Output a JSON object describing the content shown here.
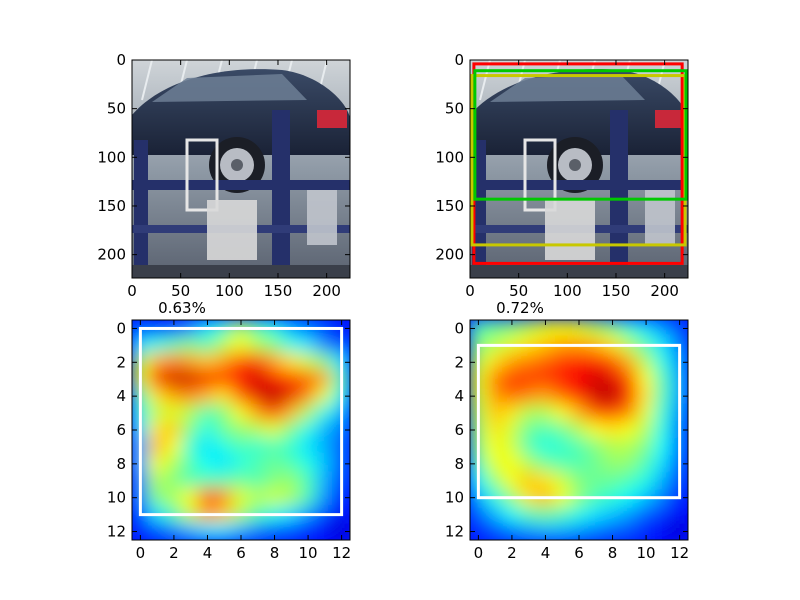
{
  "figure": {
    "panels": [
      {
        "kind": "photo",
        "scene": "car on lift",
        "xticks": [
          "0",
          "50",
          "100",
          "150",
          "200"
        ],
        "yticks": [
          "0",
          "50",
          "100",
          "150",
          "200"
        ],
        "boxes": []
      },
      {
        "kind": "photo",
        "scene": "car on lift",
        "xticks": [
          "0",
          "50",
          "100",
          "150",
          "200"
        ],
        "yticks": [
          "0",
          "50",
          "100",
          "150",
          "200"
        ],
        "boxes": [
          {
            "color": "#ff0000",
            "x0": 4,
            "y0": 4,
            "x1": 218,
            "y1": 209
          },
          {
            "color": "#c8c800",
            "x0": 2,
            "y0": 16,
            "x1": 221,
            "y1": 190
          },
          {
            "color": "#00c800",
            "x0": 5,
            "y0": 11,
            "x1": 222,
            "y1": 143
          }
        ]
      },
      {
        "kind": "heatmap",
        "title": "0.63%",
        "xticks": [
          "0",
          "2",
          "4",
          "6",
          "8",
          "10",
          "12"
        ],
        "yticks": [
          "0",
          "2",
          "4",
          "6",
          "8",
          "10",
          "12"
        ],
        "box": {
          "color": "#ffffff",
          "x0": 0,
          "y0": 0,
          "x1": 12,
          "y1": 11
        }
      },
      {
        "kind": "heatmap",
        "title": "0.72%",
        "xticks": [
          "0",
          "2",
          "4",
          "6",
          "8",
          "10",
          "12"
        ],
        "yticks": [
          "0",
          "2",
          "4",
          "6",
          "8",
          "10",
          "12"
        ],
        "box": {
          "color": "#ffffff",
          "x0": 0,
          "y0": 1,
          "x1": 12,
          "y1": 10
        }
      }
    ]
  },
  "chart_data": [
    {
      "type": "image",
      "xlim": [
        0,
        224
      ],
      "ylim": [
        224,
        0
      ],
      "xticks": [
        0,
        50,
        100,
        150,
        200
      ],
      "yticks": [
        0,
        50,
        100,
        150,
        200
      ]
    },
    {
      "type": "image",
      "xlim": [
        0,
        224
      ],
      "ylim": [
        224,
        0
      ],
      "xticks": [
        0,
        50,
        100,
        150,
        200
      ],
      "yticks": [
        0,
        50,
        100,
        150,
        200
      ],
      "boxes": [
        {
          "color": "red",
          "x": [
            4,
            218
          ],
          "y": [
            4,
            209
          ]
        },
        {
          "color": "yellow",
          "x": [
            2,
            221
          ],
          "y": [
            16,
            190
          ]
        },
        {
          "color": "green",
          "x": [
            5,
            222
          ],
          "y": [
            11,
            143
          ]
        }
      ]
    },
    {
      "type": "heatmap",
      "title": "0.63%",
      "colormap": "jet",
      "xlim": [
        -0.5,
        12.5
      ],
      "ylim": [
        12.5,
        -0.5
      ],
      "xticks": [
        0,
        2,
        4,
        6,
        8,
        10,
        12
      ],
      "yticks": [
        0,
        2,
        4,
        6,
        8,
        10,
        12
      ],
      "values": [
        [
          0.2,
          0.15,
          0.18,
          0.25,
          0.35,
          0.42,
          0.55,
          0.45,
          0.4,
          0.3,
          0.25,
          0.2,
          0.12
        ],
        [
          0.35,
          0.4,
          0.45,
          0.5,
          0.45,
          0.55,
          0.62,
          0.55,
          0.5,
          0.4,
          0.35,
          0.25,
          0.2
        ],
        [
          0.55,
          0.7,
          0.75,
          0.72,
          0.68,
          0.72,
          0.8,
          0.82,
          0.72,
          0.65,
          0.58,
          0.5,
          0.35
        ],
        [
          0.6,
          0.85,
          0.92,
          0.92,
          0.88,
          0.82,
          0.86,
          0.92,
          0.85,
          0.8,
          0.78,
          0.72,
          0.45
        ],
        [
          0.45,
          0.65,
          0.72,
          0.75,
          0.7,
          0.65,
          0.78,
          0.9,
          0.95,
          0.9,
          0.75,
          0.6,
          0.4
        ],
        [
          0.4,
          0.55,
          0.6,
          0.55,
          0.45,
          0.5,
          0.62,
          0.72,
          0.82,
          0.7,
          0.55,
          0.4,
          0.3
        ],
        [
          0.35,
          0.65,
          0.68,
          0.5,
          0.4,
          0.48,
          0.52,
          0.55,
          0.6,
          0.5,
          0.4,
          0.3,
          0.25
        ],
        [
          0.3,
          0.7,
          0.62,
          0.42,
          0.35,
          0.4,
          0.45,
          0.42,
          0.45,
          0.42,
          0.35,
          0.3,
          0.22
        ],
        [
          0.3,
          0.62,
          0.55,
          0.45,
          0.38,
          0.35,
          0.4,
          0.45,
          0.48,
          0.45,
          0.4,
          0.32,
          0.22
        ],
        [
          0.25,
          0.55,
          0.5,
          0.45,
          0.45,
          0.45,
          0.48,
          0.45,
          0.5,
          0.52,
          0.45,
          0.3,
          0.2
        ],
        [
          0.25,
          0.5,
          0.55,
          0.62,
          0.8,
          0.75,
          0.6,
          0.55,
          0.58,
          0.55,
          0.45,
          0.28,
          0.15
        ],
        [
          0.2,
          0.35,
          0.45,
          0.58,
          0.72,
          0.68,
          0.55,
          0.45,
          0.4,
          0.35,
          0.28,
          0.2,
          0.12
        ],
        [
          0.15,
          0.2,
          0.25,
          0.3,
          0.35,
          0.35,
          0.3,
          0.25,
          0.22,
          0.2,
          0.15,
          0.12,
          0.08
        ]
      ]
    },
    {
      "type": "heatmap",
      "title": "0.72%",
      "colormap": "jet",
      "xlim": [
        -0.5,
        12.5
      ],
      "ylim": [
        12.5,
        -0.5
      ],
      "xticks": [
        0,
        2,
        4,
        6,
        8,
        10,
        12
      ],
      "yticks": [
        0,
        2,
        4,
        6,
        8,
        10,
        12
      ],
      "values": [
        [
          0.45,
          0.48,
          0.5,
          0.55,
          0.6,
          0.62,
          0.6,
          0.55,
          0.5,
          0.42,
          0.35,
          0.28,
          0.2
        ],
        [
          0.5,
          0.55,
          0.6,
          0.65,
          0.68,
          0.72,
          0.72,
          0.7,
          0.65,
          0.55,
          0.45,
          0.35,
          0.25
        ],
        [
          0.55,
          0.65,
          0.72,
          0.75,
          0.78,
          0.82,
          0.85,
          0.85,
          0.8,
          0.7,
          0.55,
          0.4,
          0.28
        ],
        [
          0.6,
          0.75,
          0.82,
          0.82,
          0.82,
          0.85,
          0.88,
          0.92,
          0.9,
          0.8,
          0.62,
          0.45,
          0.3
        ],
        [
          0.58,
          0.72,
          0.78,
          0.75,
          0.72,
          0.78,
          0.85,
          0.92,
          0.95,
          0.85,
          0.65,
          0.45,
          0.3
        ],
        [
          0.55,
          0.68,
          0.65,
          0.55,
          0.55,
          0.62,
          0.7,
          0.8,
          0.82,
          0.75,
          0.6,
          0.42,
          0.28
        ],
        [
          0.52,
          0.65,
          0.58,
          0.48,
          0.45,
          0.48,
          0.55,
          0.62,
          0.65,
          0.62,
          0.55,
          0.4,
          0.25
        ],
        [
          0.5,
          0.62,
          0.58,
          0.45,
          0.4,
          0.42,
          0.45,
          0.5,
          0.55,
          0.55,
          0.5,
          0.38,
          0.25
        ],
        [
          0.45,
          0.6,
          0.62,
          0.55,
          0.48,
          0.45,
          0.45,
          0.48,
          0.52,
          0.52,
          0.45,
          0.35,
          0.22
        ],
        [
          0.38,
          0.52,
          0.62,
          0.68,
          0.65,
          0.58,
          0.5,
          0.48,
          0.48,
          0.45,
          0.4,
          0.3,
          0.2
        ],
        [
          0.3,
          0.4,
          0.52,
          0.65,
          0.7,
          0.62,
          0.52,
          0.45,
          0.42,
          0.38,
          0.32,
          0.25,
          0.15
        ],
        [
          0.22,
          0.3,
          0.38,
          0.45,
          0.48,
          0.45,
          0.4,
          0.35,
          0.32,
          0.28,
          0.22,
          0.18,
          0.12
        ],
        [
          0.15,
          0.2,
          0.25,
          0.28,
          0.3,
          0.3,
          0.28,
          0.25,
          0.22,
          0.2,
          0.15,
          0.12,
          0.08
        ]
      ]
    }
  ]
}
